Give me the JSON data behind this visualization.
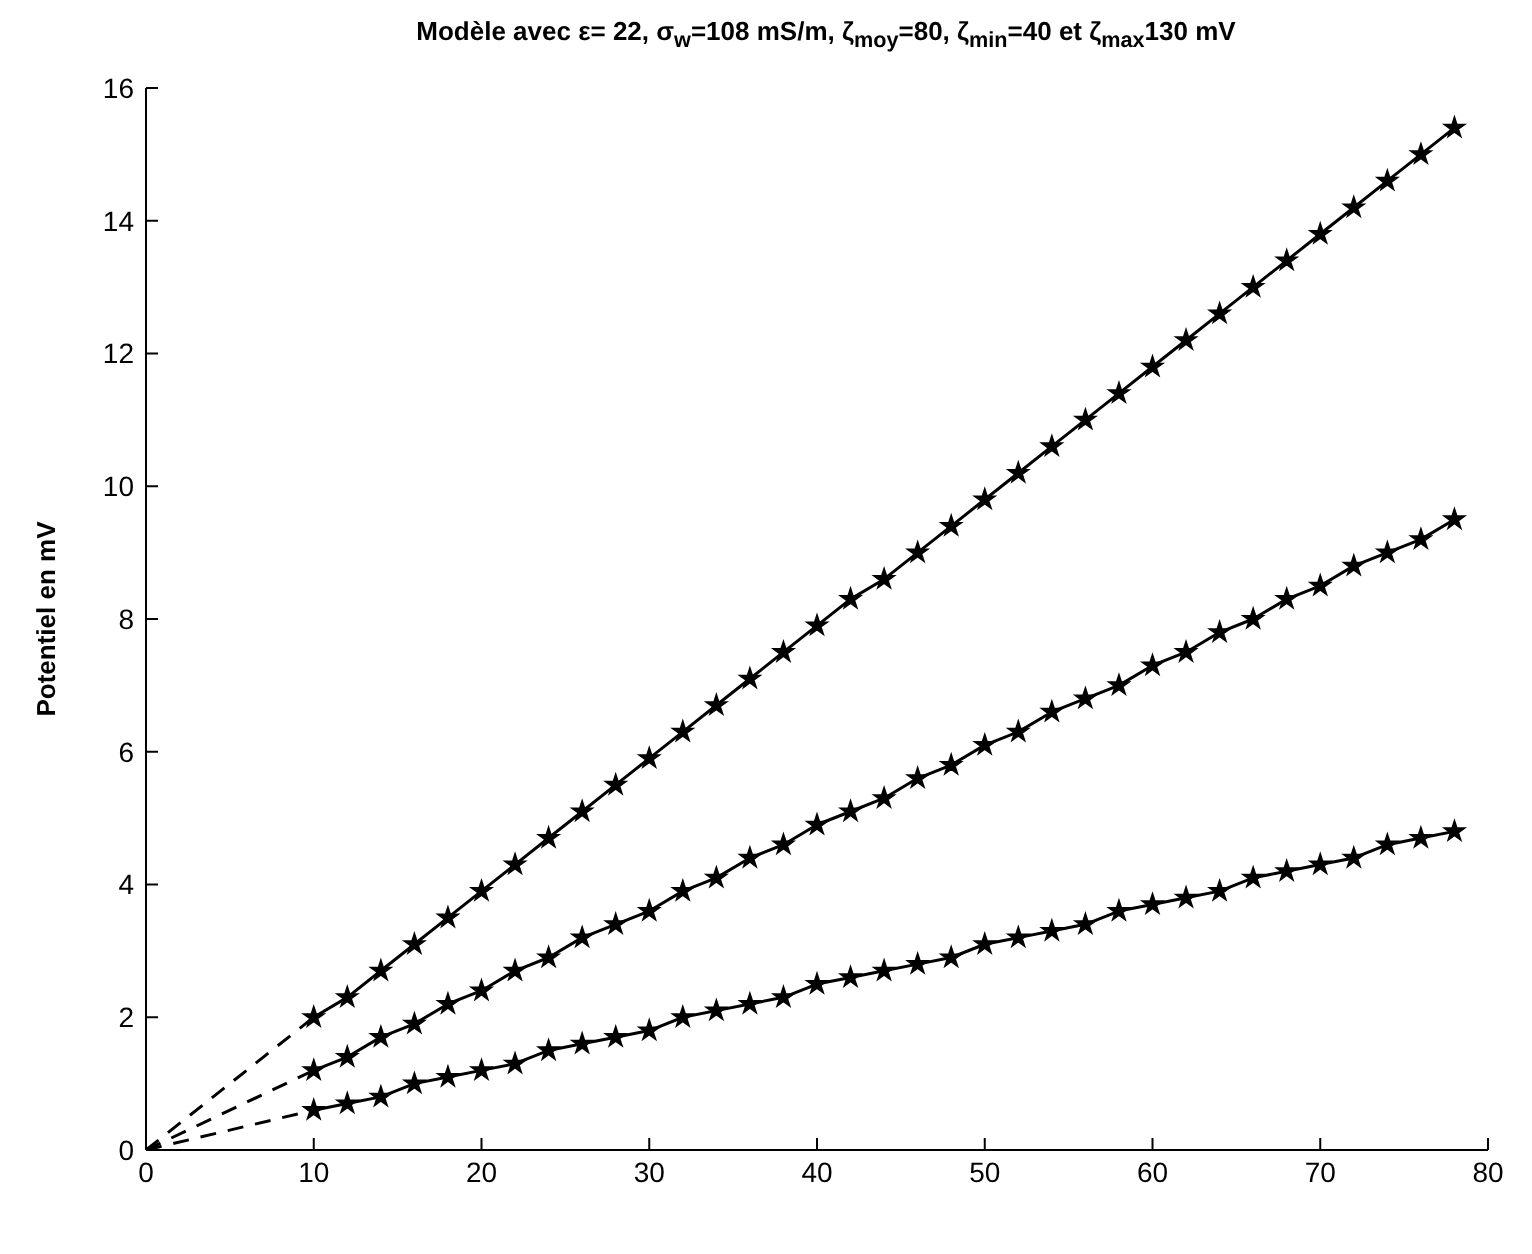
{
  "chart_data": {
    "type": "line",
    "title": "Modèle avec ε= 22, σ$_{w}$=108 mS/m, ζ$_{moy}$=80, ζ$_{min}$=40 et ζ$_{max}$130 mV",
    "ylabel": "Potentiel en mV",
    "xlim": [
      0,
      80
    ],
    "xticks": [
      0,
      10,
      20,
      30,
      40,
      50,
      60,
      70,
      80
    ],
    "ylim": [
      0,
      16
    ],
    "yticks": [
      0,
      2,
      4,
      6,
      8,
      10,
      12,
      14,
      16
    ],
    "grid": false,
    "series": [
      {
        "type": "line",
        "color": "#000000",
        "marker": "star",
        "line_style": "solid",
        "x": [
          10,
          12,
          14,
          16,
          18,
          20,
          22,
          24,
          26,
          28,
          30,
          32,
          34,
          36,
          38,
          40,
          42,
          44,
          46,
          48,
          50,
          52,
          54,
          56,
          58,
          60,
          62,
          64,
          66,
          68,
          70,
          72,
          74,
          76,
          78
        ],
        "values": [
          2.0,
          2.3,
          2.7,
          3.1,
          3.5,
          3.9,
          4.3,
          4.7,
          5.1,
          5.5,
          5.9,
          6.3,
          6.7,
          7.1,
          7.5,
          7.9,
          8.3,
          8.6,
          9.0,
          9.4,
          9.8,
          10.2,
          10.6,
          11.0,
          11.4,
          11.8,
          12.2,
          12.6,
          13.0,
          13.4,
          13.8,
          14.2,
          14.6,
          15.0,
          15.4
        ]
      },
      {
        "type": "line",
        "color": "#000000",
        "marker": "star",
        "line_style": "solid",
        "x": [
          10,
          12,
          14,
          16,
          18,
          20,
          22,
          24,
          26,
          28,
          30,
          32,
          34,
          36,
          38,
          40,
          42,
          44,
          46,
          48,
          50,
          52,
          54,
          56,
          58,
          60,
          62,
          64,
          66,
          68,
          70,
          72,
          74,
          76,
          78
        ],
        "values": [
          1.2,
          1.4,
          1.7,
          1.9,
          2.2,
          2.4,
          2.7,
          2.9,
          3.2,
          3.4,
          3.6,
          3.9,
          4.1,
          4.4,
          4.6,
          4.9,
          5.1,
          5.3,
          5.6,
          5.8,
          6.1,
          6.3,
          6.6,
          6.8,
          7.0,
          7.3,
          7.5,
          7.8,
          8.0,
          8.3,
          8.5,
          8.8,
          9.0,
          9.2,
          9.5
        ]
      },
      {
        "type": "line",
        "color": "#000000",
        "marker": "star",
        "line_style": "solid",
        "x": [
          10,
          12,
          14,
          16,
          18,
          20,
          22,
          24,
          26,
          28,
          30,
          32,
          34,
          36,
          38,
          40,
          42,
          44,
          46,
          48,
          50,
          52,
          54,
          56,
          58,
          60,
          62,
          64,
          66,
          68,
          70,
          72,
          74,
          76,
          78
        ],
        "values": [
          0.6,
          0.7,
          0.8,
          1.0,
          1.1,
          1.2,
          1.3,
          1.5,
          1.6,
          1.7,
          1.8,
          2.0,
          2.1,
          2.2,
          2.3,
          2.5,
          2.6,
          2.7,
          2.8,
          2.9,
          3.1,
          3.2,
          3.3,
          3.4,
          3.6,
          3.7,
          3.8,
          3.9,
          4.1,
          4.2,
          4.3,
          4.4,
          4.6,
          4.7,
          4.8
        ]
      },
      {
        "type": "line",
        "color": "#000000",
        "marker": "none",
        "line_style": "dashed",
        "x": [
          0,
          10
        ],
        "values": [
          0,
          2.0
        ]
      },
      {
        "type": "line",
        "color": "#000000",
        "marker": "none",
        "line_style": "dashed",
        "x": [
          0,
          10
        ],
        "values": [
          0,
          1.2
        ]
      },
      {
        "type": "line",
        "color": "#000000",
        "marker": "none",
        "line_style": "dashed",
        "x": [
          0,
          10
        ],
        "values": [
          0,
          0.6
        ]
      }
    ]
  }
}
